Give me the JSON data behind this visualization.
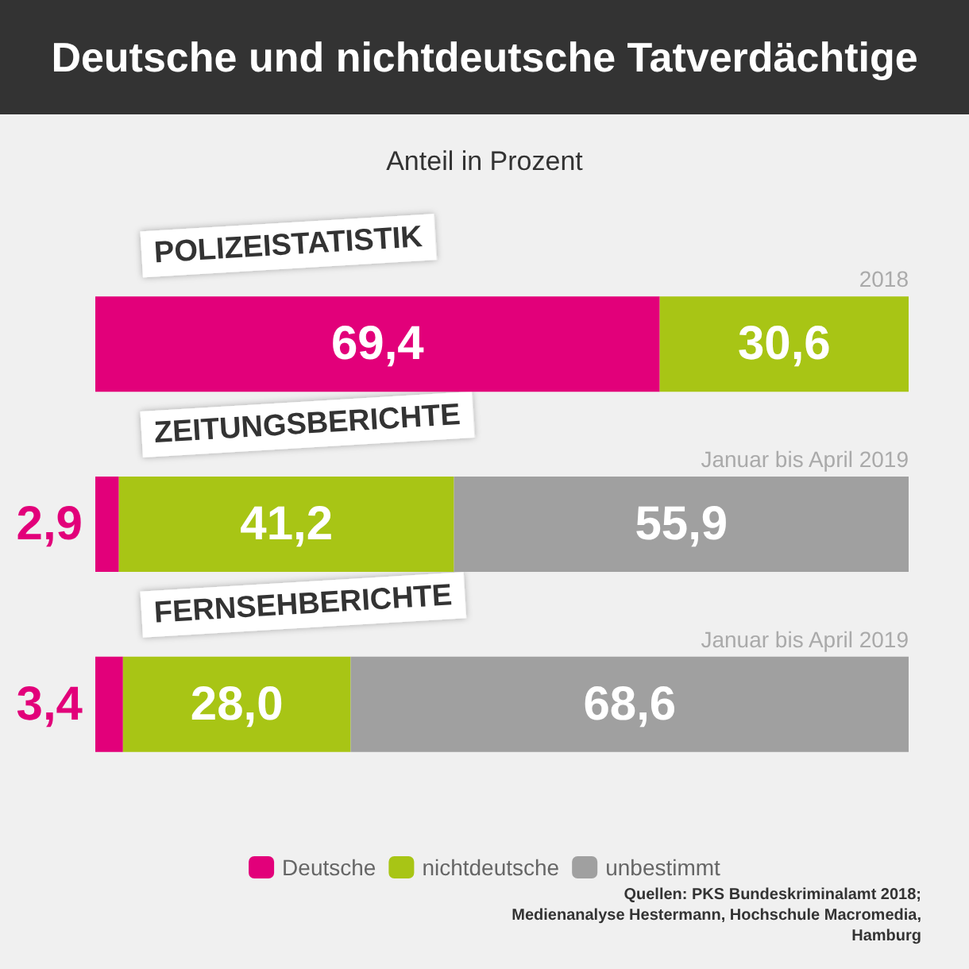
{
  "chart_data": {
    "type": "bar",
    "orientation": "horizontal",
    "stacked": true,
    "title": "Deutsche und nichtdeutsche Tatverdächtige",
    "subtitle": "Anteil in Prozent",
    "categories": [
      "POLIZEISTATISTIK",
      "ZEITUNGSBERICHTE",
      "FERNSEHBERICHTE"
    ],
    "series": [
      {
        "name": "Deutsche",
        "color": "#e2007a",
        "values": [
          69.4,
          2.9,
          3.4
        ],
        "value_labels": [
          "69,4",
          "2,9",
          "3,4"
        ]
      },
      {
        "name": "nichtdeutsche",
        "color": "#a8c515",
        "values": [
          30.6,
          41.2,
          28.0
        ],
        "value_labels": [
          "30,6",
          "41,2",
          "28,0"
        ]
      },
      {
        "name": "unbestimmt",
        "color": "#a0a0a0",
        "values": [
          null,
          55.9,
          68.6
        ],
        "value_labels": [
          null,
          "55,9",
          "68,6"
        ]
      }
    ],
    "xlim": [
      0,
      100
    ],
    "tick_labels": "y",
    "legend": "bottom",
    "annotations": [
      "2018",
      "Januar bis April 2019",
      "Januar bis April 2019",
      "Quellen: PKS Bundeskriminalamt 2018; Medienanalyse Hestermann, Hochschule Macromedia, Hamburg"
    ]
  }
}
